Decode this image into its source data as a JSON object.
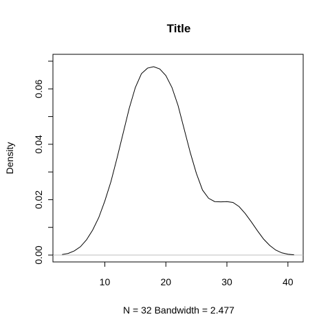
{
  "chart_data": {
    "type": "line",
    "title": "Title",
    "xlabel": "N = 32   Bandwidth = 2.477",
    "ylabel": "Density",
    "xlim": [
      1.5,
      42.5
    ],
    "ylim": [
      0,
      0.07
    ],
    "x_ticks": [
      10,
      20,
      30,
      40
    ],
    "y_ticks": [
      0.0,
      0.02,
      0.04,
      0.06
    ],
    "y_tick_labels": [
      "0.00",
      "0.02",
      "0.04",
      "0.06"
    ],
    "grid": false,
    "legend": "none",
    "baseline_color": "#bebebe",
    "curve_color": "#000000",
    "series": [
      {
        "x": [
          3.0,
          4.0,
          5.0,
          6.0,
          7.0,
          8.0,
          9.0,
          10.0,
          11.0,
          12.0,
          13.0,
          14.0,
          15.0,
          16.0,
          17.0,
          18.0,
          19.0,
          20.0,
          21.0,
          22.0,
          23.0,
          24.0,
          25.0,
          26.0,
          27.0,
          28.0,
          29.0,
          30.0,
          31.0,
          32.0,
          33.0,
          34.0,
          35.0,
          36.0,
          37.0,
          38.0,
          39.0,
          40.0,
          41.0
        ],
        "y": [
          0.0002,
          0.0006,
          0.0015,
          0.003,
          0.0055,
          0.009,
          0.0135,
          0.0195,
          0.0265,
          0.035,
          0.044,
          0.053,
          0.0605,
          0.0655,
          0.0675,
          0.068,
          0.0672,
          0.0648,
          0.0605,
          0.054,
          0.0455,
          0.037,
          0.0295,
          0.0235,
          0.0205,
          0.0193,
          0.0192,
          0.0193,
          0.019,
          0.0175,
          0.015,
          0.012,
          0.0088,
          0.0058,
          0.0035,
          0.0018,
          0.0008,
          0.0003,
          0.0001
        ]
      }
    ]
  }
}
